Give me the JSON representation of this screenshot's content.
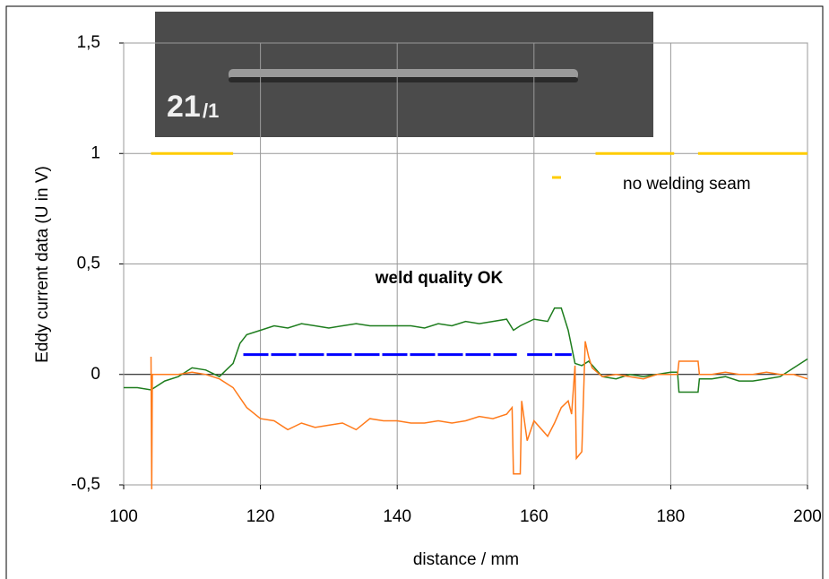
{
  "chart_data": {
    "type": "line",
    "y_label": "Eddy current data (U in V)",
    "x_label": "distance / mm",
    "annotations": [
      "weld quality OK"
    ],
    "inset_label": "21",
    "inset_sublabel": "/1",
    "xlim": [
      100,
      200
    ],
    "xticks": [
      100,
      120,
      140,
      160,
      180,
      200
    ],
    "ylim": [
      -0.5,
      1.5
    ],
    "yticks": [
      {
        "value": -0.5,
        "label": "-0,5"
      },
      0,
      {
        "value": 0.5,
        "label": "0,5"
      },
      1,
      {
        "value": 1.5,
        "label": "1,5"
      }
    ],
    "grid": true,
    "series": [
      {
        "color": "#1e7d1e",
        "x": [
          100,
          102,
          104,
          106,
          108,
          110,
          112,
          114,
          116,
          117,
          118,
          120,
          122,
          124,
          126,
          128,
          130,
          132,
          134,
          136,
          138,
          140,
          142,
          144,
          146,
          148,
          150,
          152,
          154,
          156,
          157,
          158,
          160,
          162,
          163,
          164,
          165,
          166,
          167,
          168,
          170,
          172,
          174,
          176,
          178,
          180,
          181,
          181.2,
          184,
          184.2,
          186,
          188,
          190,
          192,
          194,
          196,
          198,
          200
        ],
        "values": [
          -0.06,
          -0.06,
          -0.07,
          -0.03,
          -0.01,
          0.03,
          0.02,
          -0.01,
          0.05,
          0.14,
          0.18,
          0.2,
          0.22,
          0.21,
          0.23,
          0.22,
          0.21,
          0.22,
          0.23,
          0.22,
          0.22,
          0.22,
          0.22,
          0.21,
          0.23,
          0.22,
          0.24,
          0.23,
          0.24,
          0.25,
          0.2,
          0.22,
          0.25,
          0.24,
          0.3,
          0.3,
          0.2,
          0.05,
          0.04,
          0.06,
          -0.01,
          -0.02,
          0,
          -0.01,
          0,
          0.01,
          0.01,
          -0.08,
          -0.08,
          -0.02,
          -0.02,
          -0.01,
          -0.03,
          -0.03,
          -0.02,
          -0.01,
          0.03,
          0.07
        ]
      },
      {
        "color": "#ff7a1a",
        "x": [
          104,
          104.1,
          104.2,
          106,
          108,
          110,
          112,
          114,
          116,
          118,
          120,
          122,
          124,
          126,
          128,
          130,
          132,
          134,
          136,
          138,
          140,
          142,
          144,
          146,
          148,
          150,
          152,
          154,
          156,
          156.8,
          157,
          158,
          158.2,
          159,
          160,
          162,
          163,
          164,
          165,
          165.5,
          166,
          166.2,
          167,
          167.5,
          168,
          168.5,
          170,
          172,
          174,
          176,
          178,
          180,
          181,
          181.2,
          184,
          184.2,
          186,
          188,
          190,
          192,
          194,
          196,
          198,
          200
        ],
        "values": [
          0.08,
          -0.52,
          0,
          0,
          0,
          0.01,
          0,
          -0.02,
          -0.06,
          -0.15,
          -0.2,
          -0.21,
          -0.25,
          -0.22,
          -0.24,
          -0.23,
          -0.22,
          -0.25,
          -0.2,
          -0.21,
          -0.21,
          -0.22,
          -0.22,
          -0.21,
          -0.22,
          -0.21,
          -0.19,
          -0.2,
          -0.18,
          -0.15,
          -0.45,
          -0.45,
          -0.12,
          -0.3,
          -0.21,
          -0.28,
          -0.22,
          -0.15,
          -0.12,
          -0.18,
          0.04,
          -0.38,
          -0.35,
          0.15,
          0.08,
          0.03,
          -0.01,
          0,
          -0.01,
          -0.02,
          0,
          0,
          0,
          0.06,
          0.06,
          0,
          0,
          0.01,
          0,
          0,
          0.01,
          0,
          0,
          -0.02
        ]
      },
      {
        "color": "#0000ff",
        "dashed": true,
        "x": [
          117.5,
          157.5,
          158.5,
          159,
          165.5
        ],
        "values": [
          0.09,
          0.09,
          null,
          0.09,
          0.09
        ]
      },
      {
        "name": "no welding seam",
        "color": "#ffcc00",
        "x": [
          104,
          116,
          117,
          169,
          180.5,
          181,
          184,
          200
        ],
        "values": [
          1,
          1,
          null,
          1,
          1,
          null,
          1,
          1
        ]
      }
    ]
  }
}
